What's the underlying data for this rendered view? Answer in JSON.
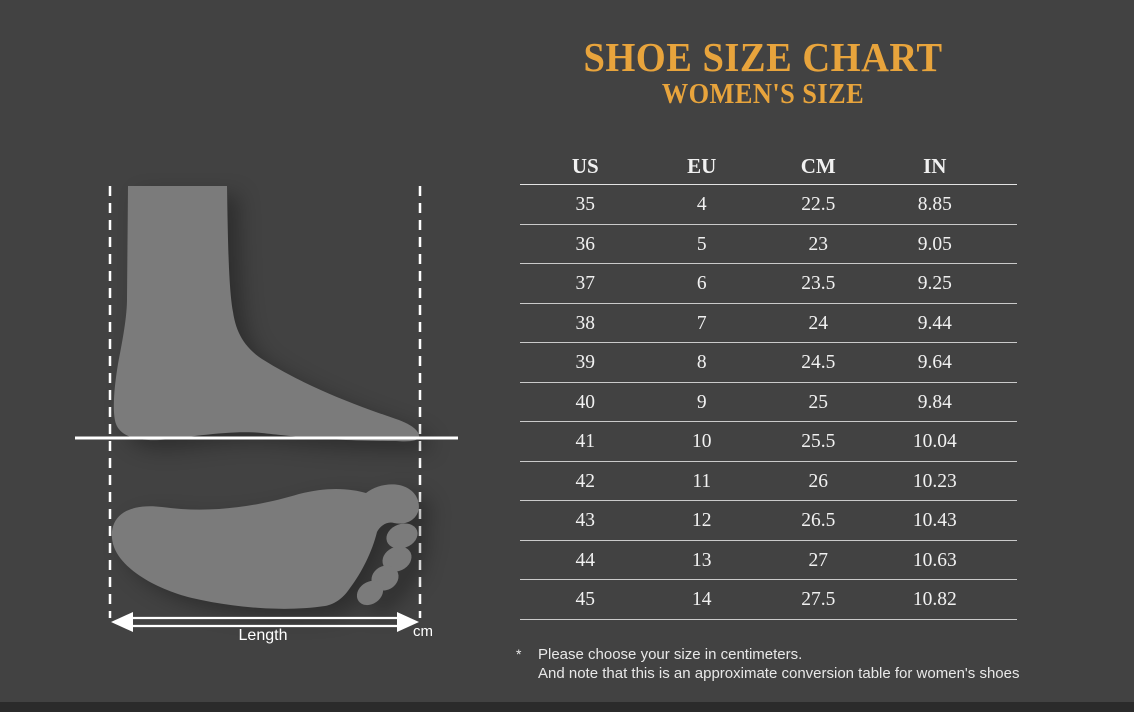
{
  "chart_data": {
    "type": "table",
    "title": "SHOE SIZE CHART",
    "subtitle": "WOMEN'S SIZE",
    "columns": [
      "US",
      "EU",
      "CM",
      "IN"
    ],
    "rows": [
      [
        "35",
        "4",
        "22.5",
        "8.85"
      ],
      [
        "36",
        "5",
        "23",
        "9.05"
      ],
      [
        "37",
        "6",
        "23.5",
        "9.25"
      ],
      [
        "38",
        "7",
        "24",
        "9.44"
      ],
      [
        "39",
        "8",
        "24.5",
        "9.64"
      ],
      [
        "40",
        "9",
        "25",
        "9.84"
      ],
      [
        "41",
        "10",
        "25.5",
        "10.04"
      ],
      [
        "42",
        "11",
        "26",
        "10.23"
      ],
      [
        "43",
        "12",
        "26.5",
        "10.43"
      ],
      [
        "44",
        "13",
        "27",
        "10.63"
      ],
      [
        "45",
        "14",
        "27.5",
        "10.82"
      ]
    ],
    "footnote_marker": "*",
    "footnote_lines": [
      "Please choose your size in centimeters.",
      "And note that this is an approximate conversion table for women's shoes"
    ],
    "legend_position": "none",
    "grid": "horizontal-rules"
  },
  "diagram": {
    "length_label": "Length",
    "unit_label": "cm",
    "icons": [
      "foot-side-silhouette-icon",
      "footprint-silhouette-icon",
      "measure-arrow-icon"
    ]
  },
  "colors": {
    "background": "#424242",
    "accent_gold": "#E8A43C",
    "foot_gray": "#7B7B7B",
    "rule_white": "#CCCCCC",
    "text_white": "#F1F1F1",
    "bottom_bar": "#2B2B2B"
  }
}
